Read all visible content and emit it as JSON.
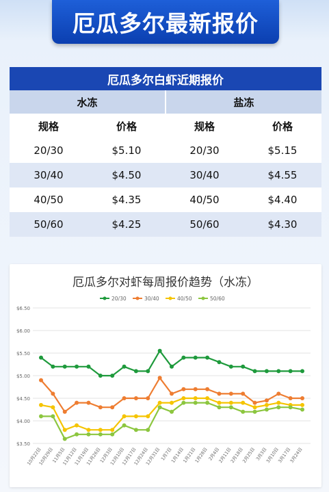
{
  "banner": {
    "title": "厄瓜多尔最新报价"
  },
  "price_table": {
    "title": "厄瓜多尔白虾近期报价",
    "groups": [
      "水冻",
      "盐冻"
    ],
    "headers": [
      "规格",
      "价格",
      "规格",
      "价格"
    ],
    "rows": [
      [
        "20/30",
        "$5.10",
        "20/30",
        "$5.15"
      ],
      [
        "30/40",
        "$4.50",
        "30/40",
        "$4.55"
      ],
      [
        "40/50",
        "$4.35",
        "40/50",
        "$4.40"
      ],
      [
        "50/60",
        "$4.25",
        "50/60",
        "$4.30"
      ]
    ]
  },
  "chart_data": {
    "type": "line",
    "title": "厄瓜多尔对虾每周报价趋势（水冻）",
    "legend_position": "top",
    "grid": true,
    "ylim": [
      3.5,
      6.5
    ],
    "yticks": [
      3.5,
      4.0,
      4.5,
      5.0,
      5.5,
      6.0,
      6.5
    ],
    "ytick_labels": [
      "$3.50",
      "$4.00",
      "$4.50",
      "$5.00",
      "$5.50",
      "$6.00",
      "$6.50"
    ],
    "categories": [
      "10月22日",
      "10月29日",
      "11月5日",
      "11月12日",
      "11月19日",
      "11月26日",
      "12月3日",
      "12月10日",
      "12月17日",
      "12月24日",
      "12月31日",
      "1月7日",
      "1月14日",
      "1月21日",
      "1月28日",
      "2月4日",
      "2月11日",
      "2月18日",
      "2月25日",
      "3月3日",
      "3月10日",
      "3月17日",
      "3月24日"
    ],
    "x_labels": [
      "10月22日",
      "10月29日",
      "11月5日",
      "11月12日",
      "11月19日",
      "11月26日",
      "12月3日",
      "12月10日",
      "12月17日",
      "12月24日",
      "12月31日",
      "1月7日",
      "1月14日",
      "1月21日",
      "1月28日",
      "2月4日",
      "2月11日",
      "2月18日",
      "2月25日",
      "3月3日",
      "3月10日",
      "3月17日",
      "3月24日"
    ],
    "series": [
      {
        "name": "20/30",
        "color": "#1e9a3c",
        "values": [
          5.4,
          5.2,
          5.2,
          5.2,
          5.2,
          5.0,
          5.0,
          5.2,
          5.1,
          5.1,
          5.55,
          5.2,
          5.4,
          5.4,
          5.4,
          5.3,
          5.2,
          5.2,
          5.1,
          5.1,
          5.1,
          5.1,
          5.1
        ]
      },
      {
        "name": "30/40",
        "color": "#ee7d31",
        "values": [
          4.9,
          4.6,
          4.2,
          4.4,
          4.4,
          4.3,
          4.3,
          4.5,
          4.5,
          4.5,
          4.95,
          4.6,
          4.7,
          4.7,
          4.7,
          4.6,
          4.6,
          4.6,
          4.4,
          4.45,
          4.6,
          4.5,
          4.5
        ]
      },
      {
        "name": "40/50",
        "color": "#f5c400",
        "values": [
          4.35,
          4.3,
          3.8,
          3.9,
          3.8,
          3.8,
          3.8,
          4.1,
          4.1,
          4.1,
          4.4,
          4.4,
          4.5,
          4.5,
          4.5,
          4.4,
          4.4,
          4.4,
          4.3,
          4.35,
          4.4,
          4.35,
          4.35
        ]
      },
      {
        "name": "50/60",
        "color": "#8cc63f",
        "values": [
          4.1,
          4.1,
          3.6,
          3.7,
          3.7,
          3.7,
          3.7,
          3.9,
          3.8,
          3.8,
          4.3,
          4.2,
          4.4,
          4.4,
          4.4,
          4.3,
          4.3,
          4.2,
          4.2,
          4.25,
          4.3,
          4.3,
          4.25
        ]
      }
    ]
  }
}
